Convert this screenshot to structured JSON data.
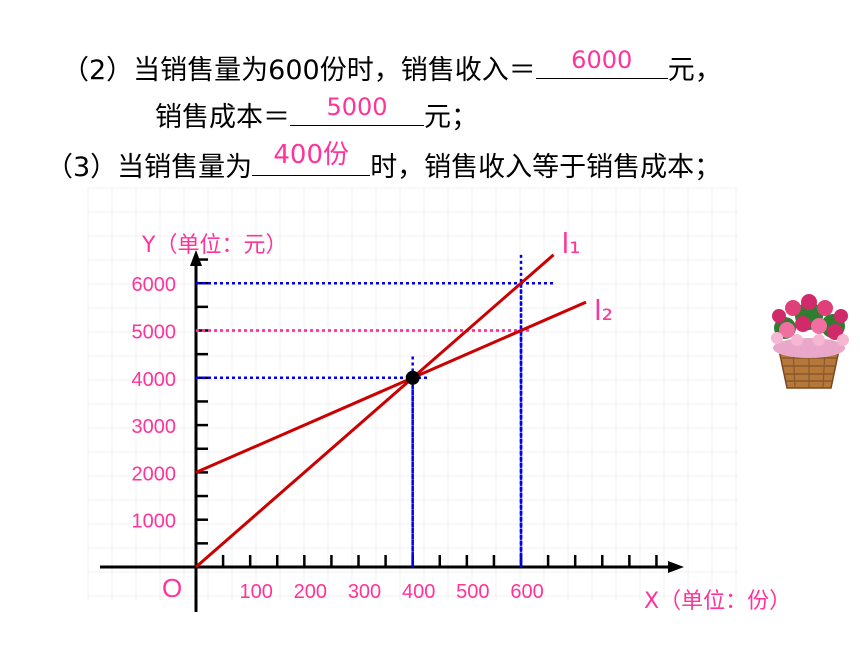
{
  "questions": {
    "q2_line1_prefix": "（2）当销售量为600份时，销售收入＝",
    "q2_line1_answer": "6000",
    "q2_line1_suffix": "元，",
    "q2_line2_prefix": "销售成本＝",
    "q2_line2_answer": "5000",
    "q2_line2_suffix": "元；",
    "q3_prefix": "（3）当销售量为",
    "q3_answer": "400份",
    "q3_suffix": "时，销售收入等于销售成本；"
  },
  "chart_data": {
    "type": "line",
    "xlabel": "X（单位：份）",
    "ylabel": "Y（单位：元）",
    "origin_label": "O",
    "xlim": [
      0,
      900
    ],
    "ylim": [
      0,
      6700
    ],
    "x_ticks": [
      100,
      200,
      300,
      400,
      500,
      600
    ],
    "x_tick_labels": [
      "100",
      "200",
      "300",
      "400",
      "500",
      "600"
    ],
    "y_ticks": [
      1000,
      2000,
      3000,
      4000,
      5000,
      6000
    ],
    "y_tick_labels": [
      "1000",
      "2000",
      "3000",
      "4000",
      "5000",
      "6000"
    ],
    "series": [
      {
        "name": "l₁",
        "x": [
          0,
          660
        ],
        "y": [
          0,
          6600
        ],
        "color": "#cc0000"
      },
      {
        "name": "l₂",
        "x": [
          0,
          720
        ],
        "y": [
          2000,
          5600
        ],
        "color": "#cc0000"
      }
    ],
    "intersection": {
      "x": 400,
      "y": 4000
    },
    "guide_lines": [
      {
        "y": 6000,
        "x": 600,
        "color": "#0000ee"
      },
      {
        "y": 5000,
        "x": 600,
        "color": "#ff3399"
      },
      {
        "y": 4000,
        "x": 400,
        "color": "#0000ee"
      }
    ],
    "tick_label_color": "#ff3399",
    "axis_label_color": "#ff3399",
    "grid": true
  }
}
